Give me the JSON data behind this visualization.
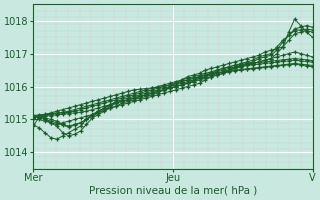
{
  "bg_color": "#c8e8e0",
  "plot_bg_color": "#c8e8e0",
  "grid_major_color": "#ffffff",
  "grid_minor_h_color": "#b8ddd5",
  "grid_minor_v_color": "#e8c8c8",
  "line_color": "#1a5c2a",
  "xlabel_text": "Pression niveau de la mer( hPa )",
  "yticks": [
    1014,
    1015,
    1016,
    1017,
    1018
  ],
  "ylim": [
    1013.5,
    1018.5
  ],
  "xlim": [
    0,
    96
  ],
  "xtick_positions": [
    0,
    48,
    96
  ],
  "xtick_labels": [
    "Mer",
    "Jeu",
    "V"
  ],
  "series": [
    [
      1014.8,
      1015.05,
      1015.15,
      1015.2,
      1015.25,
      1015.3,
      1015.35,
      1015.4,
      1015.45,
      1015.5,
      1015.55,
      1015.6,
      1015.65,
      1015.7,
      1015.75,
      1015.8,
      1015.85,
      1015.9,
      1015.92,
      1015.94,
      1015.96,
      1015.98,
      1016.0,
      1016.05,
      1016.1,
      1016.15,
      1016.2,
      1016.25,
      1016.3,
      1016.35,
      1016.4,
      1016.42,
      1016.44,
      1016.46,
      1016.48,
      1016.5,
      1016.52,
      1016.54,
      1016.56,
      1016.58,
      1016.6,
      1016.62,
      1016.64,
      1016.66,
      1016.68,
      1016.65,
      1016.62,
      1016.6
    ],
    [
      1015.05,
      1015.08,
      1015.1,
      1015.12,
      1015.14,
      1015.16,
      1015.18,
      1015.2,
      1015.22,
      1015.25,
      1015.3,
      1015.35,
      1015.4,
      1015.45,
      1015.5,
      1015.55,
      1015.6,
      1015.65,
      1015.7,
      1015.75,
      1015.8,
      1015.85,
      1015.9,
      1015.95,
      1016.0,
      1016.05,
      1016.1,
      1016.15,
      1016.2,
      1016.25,
      1016.3,
      1016.35,
      1016.4,
      1016.45,
      1016.5,
      1016.52,
      1016.54,
      1016.56,
      1016.58,
      1016.6,
      1016.62,
      1016.64,
      1016.66,
      1016.68,
      1016.7,
      1016.68,
      1016.66,
      1016.64
    ],
    [
      1015.1,
      1015.12,
      1015.14,
      1015.16,
      1015.18,
      1015.2,
      1015.22,
      1015.25,
      1015.3,
      1015.35,
      1015.4,
      1015.45,
      1015.5,
      1015.55,
      1015.6,
      1015.65,
      1015.7,
      1015.75,
      1015.8,
      1015.85,
      1015.9,
      1015.95,
      1016.0,
      1016.05,
      1016.1,
      1016.15,
      1016.2,
      1016.25,
      1016.3,
      1016.35,
      1016.4,
      1016.45,
      1016.5,
      1016.55,
      1016.6,
      1016.62,
      1016.64,
      1016.66,
      1016.68,
      1016.7,
      1016.72,
      1016.74,
      1016.76,
      1016.78,
      1016.8,
      1016.78,
      1016.76,
      1016.74
    ],
    [
      1015.12,
      1015.14,
      1015.16,
      1015.18,
      1015.2,
      1015.22,
      1015.25,
      1015.3,
      1015.35,
      1015.4,
      1015.45,
      1015.5,
      1015.55,
      1015.6,
      1015.65,
      1015.7,
      1015.75,
      1015.8,
      1015.85,
      1015.9,
      1015.95,
      1016.0,
      1016.05,
      1016.1,
      1016.15,
      1016.2,
      1016.25,
      1016.3,
      1016.35,
      1016.4,
      1016.45,
      1016.5,
      1016.55,
      1016.6,
      1016.65,
      1016.67,
      1016.69,
      1016.71,
      1016.73,
      1016.75,
      1016.77,
      1016.79,
      1016.81,
      1016.83,
      1016.85,
      1016.83,
      1016.81,
      1016.79
    ],
    [
      1015.0,
      1015.0,
      1014.95,
      1014.9,
      1014.85,
      1014.9,
      1014.95,
      1015.0,
      1015.05,
      1015.1,
      1015.15,
      1015.25,
      1015.35,
      1015.45,
      1015.55,
      1015.6,
      1015.65,
      1015.7,
      1015.75,
      1015.8,
      1015.85,
      1015.9,
      1015.95,
      1016.0,
      1016.05,
      1016.1,
      1016.15,
      1016.2,
      1016.25,
      1016.3,
      1016.35,
      1016.4,
      1016.45,
      1016.5,
      1016.55,
      1016.6,
      1016.65,
      1016.7,
      1016.75,
      1016.8,
      1016.85,
      1016.9,
      1016.95,
      1017.0,
      1017.05,
      1017.0,
      1016.95,
      1016.9
    ],
    [
      1015.0,
      1015.1,
      1015.0,
      1014.9,
      1014.8,
      1014.6,
      1014.5,
      1014.55,
      1014.65,
      1014.85,
      1015.05,
      1015.15,
      1015.25,
      1015.35,
      1015.4,
      1015.5,
      1015.55,
      1015.6,
      1015.65,
      1015.7,
      1015.75,
      1015.8,
      1015.9,
      1016.0,
      1016.1,
      1016.2,
      1016.3,
      1016.35,
      1016.4,
      1016.5,
      1016.55,
      1016.6,
      1016.65,
      1016.7,
      1016.75,
      1016.8,
      1016.85,
      1016.9,
      1016.95,
      1017.05,
      1017.1,
      1017.15,
      1017.2,
      1017.65,
      1018.05,
      1017.85,
      1017.65,
      1017.5
    ],
    [
      1015.05,
      1015.1,
      1015.05,
      1015.0,
      1014.95,
      1014.85,
      1014.8,
      1014.85,
      1014.9,
      1015.0,
      1015.15,
      1015.2,
      1015.3,
      1015.35,
      1015.4,
      1015.45,
      1015.5,
      1015.55,
      1015.6,
      1015.65,
      1015.7,
      1015.75,
      1015.8,
      1015.85,
      1015.9,
      1015.95,
      1016.0,
      1016.05,
      1016.1,
      1016.2,
      1016.3,
      1016.35,
      1016.4,
      1016.5,
      1016.6,
      1016.65,
      1016.7,
      1016.75,
      1016.85,
      1016.9,
      1016.95,
      1017.1,
      1017.35,
      1017.55,
      1017.75,
      1017.8,
      1017.85,
      1017.8
    ],
    [
      1014.85,
      1014.75,
      1014.6,
      1014.45,
      1014.4,
      1014.5,
      1014.6,
      1014.7,
      1014.8,
      1015.0,
      1015.15,
      1015.25,
      1015.35,
      1015.45,
      1015.5,
      1015.55,
      1015.6,
      1015.65,
      1015.7,
      1015.75,
      1015.8,
      1015.85,
      1015.9,
      1015.95,
      1016.0,
      1016.05,
      1016.1,
      1016.2,
      1016.3,
      1016.35,
      1016.4,
      1016.5,
      1016.55,
      1016.6,
      1016.65,
      1016.7,
      1016.75,
      1016.8,
      1016.9,
      1016.95,
      1017.0,
      1017.2,
      1017.4,
      1017.55,
      1017.7,
      1017.72,
      1017.74,
      1017.72
    ],
    [
      1015.1,
      1015.05,
      1015.0,
      1014.95,
      1014.9,
      1014.82,
      1014.78,
      1014.82,
      1014.9,
      1015.0,
      1015.1,
      1015.2,
      1015.3,
      1015.4,
      1015.5,
      1015.55,
      1015.6,
      1015.65,
      1015.7,
      1015.75,
      1015.8,
      1015.85,
      1015.9,
      1015.95,
      1016.0,
      1016.05,
      1016.1,
      1016.15,
      1016.25,
      1016.3,
      1016.35,
      1016.4,
      1016.45,
      1016.5,
      1016.55,
      1016.6,
      1016.65,
      1016.7,
      1016.75,
      1016.8,
      1016.85,
      1017.0,
      1017.2,
      1017.4,
      1017.6,
      1017.65,
      1017.7,
      1017.65
    ]
  ]
}
